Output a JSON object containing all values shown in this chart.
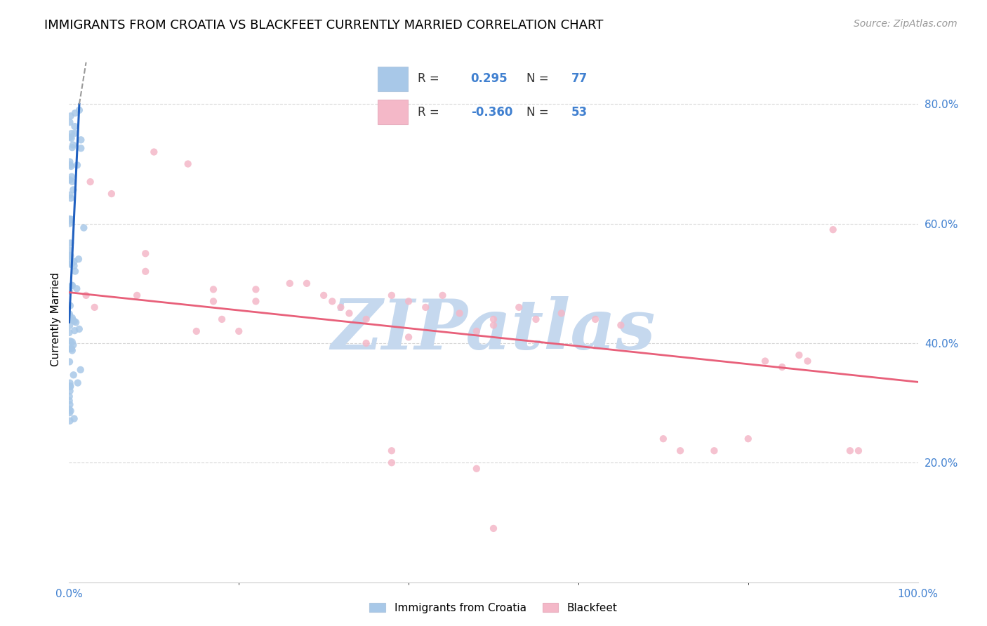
{
  "title": "IMMIGRANTS FROM CROATIA VS BLACKFEET CURRENTLY MARRIED CORRELATION CHART",
  "source": "Source: ZipAtlas.com",
  "ylabel": "Currently Married",
  "legend_label1": "Immigrants from Croatia",
  "legend_label2": "Blackfeet",
  "watermark": "ZIPatlas",
  "color_blue": "#a8c8e8",
  "color_pink": "#f4b8c8",
  "color_blue_line": "#2060c0",
  "color_pink_line": "#e8607a",
  "color_tick": "#4080d0",
  "xlim": [
    0.0,
    1.0
  ],
  "ylim": [
    0.0,
    0.88
  ],
  "yticks": [
    0.2,
    0.4,
    0.6,
    0.8
  ],
  "ytick_labels": [
    "20.0%",
    "40.0%",
    "60.0%",
    "80.0%"
  ],
  "bg_color": "#ffffff",
  "grid_color": "#d8d8d8",
  "watermark_color": "#c5d8ee",
  "title_fontsize": 13,
  "source_fontsize": 10,
  "label_fontsize": 11,
  "tick_fontsize": 11,
  "legend_fontsize": 12
}
